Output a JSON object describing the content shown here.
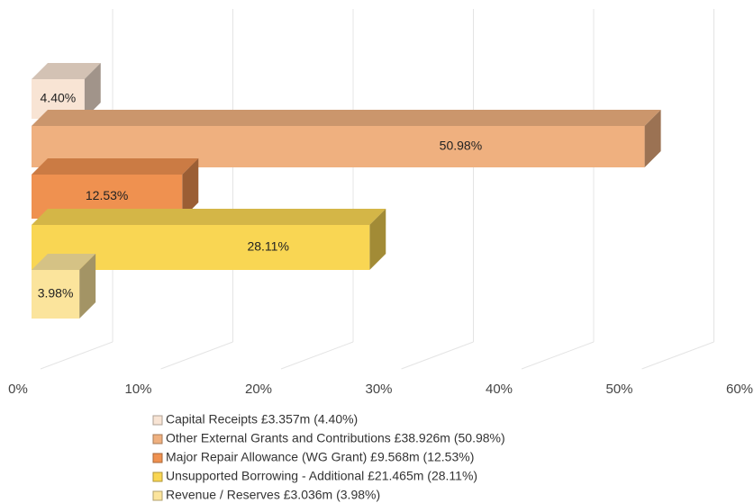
{
  "chart_data": {
    "type": "bar3d_horizontal",
    "categories": [
      "Capital Receipts £3.357m (4.40%)",
      "Other External Grants and Contributions £38.926m (50.98%)",
      "Major Repair Allowance (WG Grant)  £9.568m (12.53%)",
      "Unsupported Borrowing - Additional  £21.465m (28.11%)",
      "Revenue / Reserves  £3.036m (3.98%)"
    ],
    "values": [
      4.4,
      50.98,
      12.53,
      28.11,
      3.98
    ],
    "value_labels": [
      "4.40%",
      "50.98%",
      "12.53%",
      "28.11%",
      "3.98%"
    ],
    "colors": [
      "#f8e4d4",
      "#efb07f",
      "#ef9150",
      "#f9d653",
      "#fbe49c"
    ],
    "xlim": [
      0,
      60
    ],
    "xticks": [
      {
        "value": 0,
        "label": "0%"
      },
      {
        "value": 10,
        "label": "10%"
      },
      {
        "value": 20,
        "label": "20%"
      },
      {
        "value": 30,
        "label": "30%"
      },
      {
        "value": 40,
        "label": "40%"
      },
      {
        "value": 50,
        "label": "50%"
      },
      {
        "value": 60,
        "label": "60%"
      }
    ],
    "grid": true
  }
}
